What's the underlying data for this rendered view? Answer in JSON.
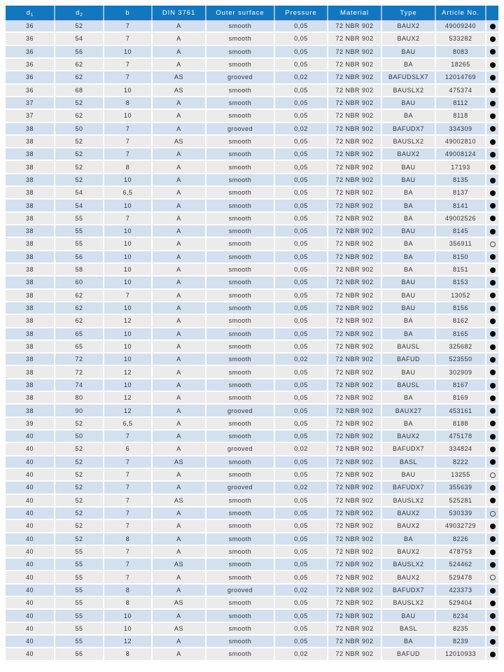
{
  "colors": {
    "header_bg": "#1377be",
    "row_blue": "#d2e0ef",
    "row_gray": "#ebebeb",
    "dot_color": "#0a0a0a"
  },
  "icons": {
    "filled": "filled-circle-icon",
    "open": "open-circle-icon"
  },
  "table": {
    "columns": [
      {
        "key": "d1",
        "label": "d",
        "sub": "1"
      },
      {
        "key": "d2",
        "label": "d",
        "sub": "2"
      },
      {
        "key": "b",
        "label": "b"
      },
      {
        "key": "din",
        "label": "DIN 3761"
      },
      {
        "key": "outer_surface",
        "label": "Outer surface"
      },
      {
        "key": "pressure",
        "label": "Pressure"
      },
      {
        "key": "material",
        "label": "Material"
      },
      {
        "key": "type",
        "label": "Type"
      },
      {
        "key": "article_no",
        "label": "Article No."
      },
      {
        "key": "availability",
        "label": ""
      }
    ],
    "rows": [
      [
        "36",
        "52",
        "7",
        "A",
        "smooth",
        "0,05",
        "72 NBR 902",
        "BAUX2",
        "49009240",
        "filled"
      ],
      [
        "36",
        "54",
        "7",
        "A",
        "smooth",
        "0,05",
        "72 NBR 902",
        "BAUX2",
        "533282",
        "filled"
      ],
      [
        "36",
        "56",
        "10",
        "A",
        "smooth",
        "0,05",
        "72 NBR 902",
        "BAU",
        "8083",
        "filled"
      ],
      [
        "36",
        "62",
        "7",
        "A",
        "smooth",
        "0,05",
        "72 NBR 902",
        "BA",
        "18265",
        "filled"
      ],
      [
        "36",
        "62",
        "7",
        "AS",
        "grooved",
        "0,02",
        "72 NBR 902",
        "BAFUDSLX7",
        "12014769",
        "filled"
      ],
      [
        "36",
        "68",
        "10",
        "AS",
        "smooth",
        "0,05",
        "72 NBR 902",
        "BAUSLX2",
        "475374",
        "filled"
      ],
      [
        "37",
        "52",
        "8",
        "A",
        "smooth",
        "0,05",
        "72 NBR 902",
        "BAU",
        "8112",
        "filled"
      ],
      [
        "37",
        "62",
        "10",
        "A",
        "smooth",
        "0,05",
        "72 NBR 902",
        "BA",
        "8118",
        "filled"
      ],
      [
        "38",
        "50",
        "7",
        "A",
        "grooved",
        "0,02",
        "72 NBR 902",
        "BAFUDX7",
        "334309",
        "filled"
      ],
      [
        "38",
        "52",
        "7",
        "AS",
        "smooth",
        "0,05",
        "72 NBR 902",
        "BAUSLX2",
        "49002810",
        "filled"
      ],
      [
        "38",
        "52",
        "7",
        "A",
        "smooth",
        "0,05",
        "72 NBR 902",
        "BAUX2",
        "49008124",
        "filled"
      ],
      [
        "38",
        "52",
        "8",
        "A",
        "smooth",
        "0,05",
        "72 NBR 902",
        "BAU",
        "17193",
        "filled"
      ],
      [
        "38",
        "52",
        "10",
        "A",
        "smooth",
        "0,05",
        "72 NBR 902",
        "BAU",
        "8135",
        "filled"
      ],
      [
        "38",
        "54",
        "6,5",
        "A",
        "smooth",
        "0,05",
        "72 NBR 902",
        "BA",
        "8137",
        "filled"
      ],
      [
        "38",
        "54",
        "10",
        "A",
        "smooth",
        "0,05",
        "72 NBR 902",
        "BA",
        "8141",
        "filled"
      ],
      [
        "38",
        "55",
        "7",
        "A",
        "smooth",
        "0,05",
        "72 NBR 902",
        "BA",
        "49002526",
        "filled"
      ],
      [
        "38",
        "55",
        "10",
        "A",
        "smooth",
        "0,05",
        "72 NBR 902",
        "BAU",
        "8145",
        "filled"
      ],
      [
        "38",
        "55",
        "10",
        "A",
        "smooth",
        "0,05",
        "72 NBR 902",
        "BA",
        "356911",
        "open"
      ],
      [
        "38",
        "56",
        "10",
        "A",
        "smooth",
        "0,05",
        "72 NBR 902",
        "BA",
        "8150",
        "filled"
      ],
      [
        "38",
        "58",
        "10",
        "A",
        "smooth",
        "0,05",
        "72 NBR 902",
        "BA",
        "8151",
        "filled"
      ],
      [
        "38",
        "60",
        "10",
        "A",
        "smooth",
        "0,05",
        "72 NBR 902",
        "BAU",
        "8153",
        "filled"
      ],
      [
        "38",
        "62",
        "7",
        "A",
        "smooth",
        "0,05",
        "72 NBR 902",
        "BAU",
        "13052",
        "filled"
      ],
      [
        "38",
        "62",
        "10",
        "A",
        "smooth",
        "0,05",
        "72 NBR 902",
        "BAU",
        "8156",
        "filled"
      ],
      [
        "38",
        "62",
        "12",
        "A",
        "smooth",
        "0,05",
        "72 NBR 902",
        "BA",
        "8162",
        "filled"
      ],
      [
        "38",
        "65",
        "10",
        "A",
        "smooth",
        "0,05",
        "72 NBR 902",
        "BA",
        "8165",
        "filled"
      ],
      [
        "38",
        "65",
        "10",
        "A",
        "smooth",
        "0,05",
        "72 NBR 902",
        "BAUSL",
        "325682",
        "filled"
      ],
      [
        "38",
        "72",
        "10",
        "A",
        "smooth",
        "0,02",
        "72 NBR 902",
        "BAFUD",
        "523550",
        "filled"
      ],
      [
        "38",
        "72",
        "12",
        "A",
        "smooth",
        "0,05",
        "72 NBR 902",
        "BAU",
        "302909",
        "filled"
      ],
      [
        "38",
        "74",
        "10",
        "A",
        "smooth",
        "0,05",
        "72 NBR 902",
        "BAUSL",
        "8167",
        "filled"
      ],
      [
        "38",
        "80",
        "12",
        "A",
        "smooth",
        "0,05",
        "72 NBR 902",
        "BA",
        "8169",
        "filled"
      ],
      [
        "38",
        "90",
        "12",
        "A",
        "grooved",
        "0,05",
        "72 NBR 902",
        "BAUX27",
        "453161",
        "filled"
      ],
      [
        "39",
        "52",
        "6,5",
        "A",
        "smooth",
        "0,05",
        "72 NBR 902",
        "BA",
        "8188",
        "filled"
      ],
      [
        "40",
        "50",
        "7",
        "A",
        "smooth",
        "0,05",
        "72 NBR 902",
        "BAUX2",
        "475178",
        "filled"
      ],
      [
        "40",
        "52",
        "6",
        "A",
        "grooved",
        "0,02",
        "72 NBR 902",
        "BAFUDX7",
        "334824",
        "filled"
      ],
      [
        "40",
        "52",
        "7",
        "AS",
        "smooth",
        "0,05",
        "72 NBR 902",
        "BASL",
        "8222",
        "filled"
      ],
      [
        "40",
        "52",
        "7",
        "A",
        "smooth",
        "0,05",
        "72 NBR 902",
        "BAU",
        "13255",
        "open"
      ],
      [
        "40",
        "52",
        "7",
        "A",
        "grooved",
        "0,02",
        "72 NBR 902",
        "BAFUDX7",
        "355639",
        "filled"
      ],
      [
        "40",
        "52",
        "7",
        "AS",
        "smooth",
        "0,05",
        "72 NBR 902",
        "BAUSLX2",
        "525281",
        "filled"
      ],
      [
        "40",
        "52",
        "7",
        "A",
        "smooth",
        "0,05",
        "72 NBR 902",
        "BAUX2",
        "530339",
        "open"
      ],
      [
        "40",
        "52",
        "7",
        "A",
        "smooth",
        "0,05",
        "72 NBR 902",
        "BAUX2",
        "49032729",
        "filled"
      ],
      [
        "40",
        "52",
        "8",
        "A",
        "smooth",
        "0,05",
        "72 NBR 902",
        "BA",
        "8226",
        "filled"
      ],
      [
        "40",
        "55",
        "7",
        "A",
        "smooth",
        "0,05",
        "72 NBR 902",
        "BAUX2",
        "478753",
        "filled"
      ],
      [
        "40",
        "55",
        "7",
        "AS",
        "smooth",
        "0,05",
        "72 NBR 902",
        "BAUSLX2",
        "524462",
        "filled"
      ],
      [
        "40",
        "55",
        "7",
        "A",
        "smooth",
        "0,05",
        "72 NBR 902",
        "BAUX2",
        "529478",
        "open"
      ],
      [
        "40",
        "55",
        "8",
        "A",
        "grooved",
        "0,02",
        "72 NBR 902",
        "BAFUDX7",
        "423373",
        "filled"
      ],
      [
        "40",
        "55",
        "8",
        "AS",
        "smooth",
        "0,05",
        "72 NBR 902",
        "BAUSLX2",
        "529404",
        "filled"
      ],
      [
        "40",
        "55",
        "10",
        "A",
        "smooth",
        "0,05",
        "72 NBR 902",
        "BAU",
        "8234",
        "filled"
      ],
      [
        "40",
        "55",
        "10",
        "AS",
        "smooth",
        "0,05",
        "72 NBR 902",
        "BASL",
        "8235",
        "filled"
      ],
      [
        "40",
        "55",
        "12",
        "A",
        "smooth",
        "0,05",
        "72 NBR 902",
        "BA",
        "8239",
        "filled"
      ],
      [
        "40",
        "56",
        "8",
        "A",
        "smooth",
        "0,02",
        "72 NBR 902",
        "BAFUD",
        "12010933",
        "filled"
      ]
    ]
  }
}
